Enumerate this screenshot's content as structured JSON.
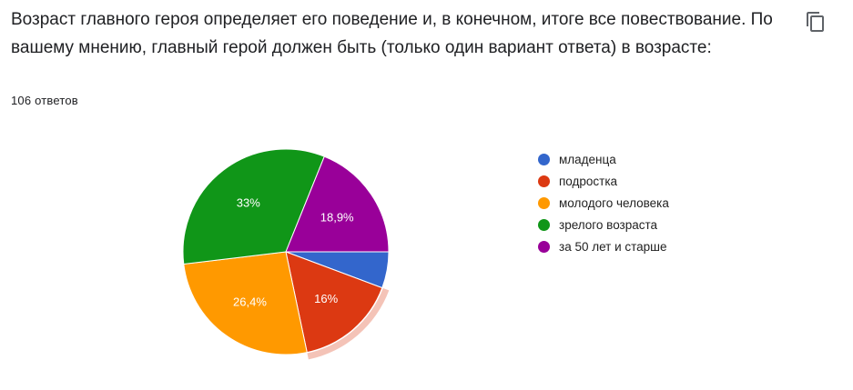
{
  "question": {
    "title": "Возраст главного героя определяет его поведение и, в конечном, итоге все повествование. По вашему мнению, главный герой должен быть (только один вариант ответа) в возрасте:",
    "response_count": "106 ответов"
  },
  "toolbar": {
    "copy_icon": "copy-icon"
  },
  "chart_data": {
    "type": "pie",
    "title": "",
    "legend_position": "right",
    "highlighted": "подростка",
    "series": [
      {
        "name": "младенца",
        "value": 5.7,
        "label": "",
        "color": "#3366cc"
      },
      {
        "name": "подростка",
        "value": 16.0,
        "label": "16%",
        "color": "#dc3912"
      },
      {
        "name": "молодого человека",
        "value": 26.4,
        "label": "26,4%",
        "color": "#ff9900"
      },
      {
        "name": "зрелого возраста",
        "value": 33.0,
        "label": "33%",
        "color": "#109618"
      },
      {
        "name": "за 50 лет и старше",
        "value": 18.9,
        "label": "18,9%",
        "color": "#990099"
      }
    ]
  }
}
